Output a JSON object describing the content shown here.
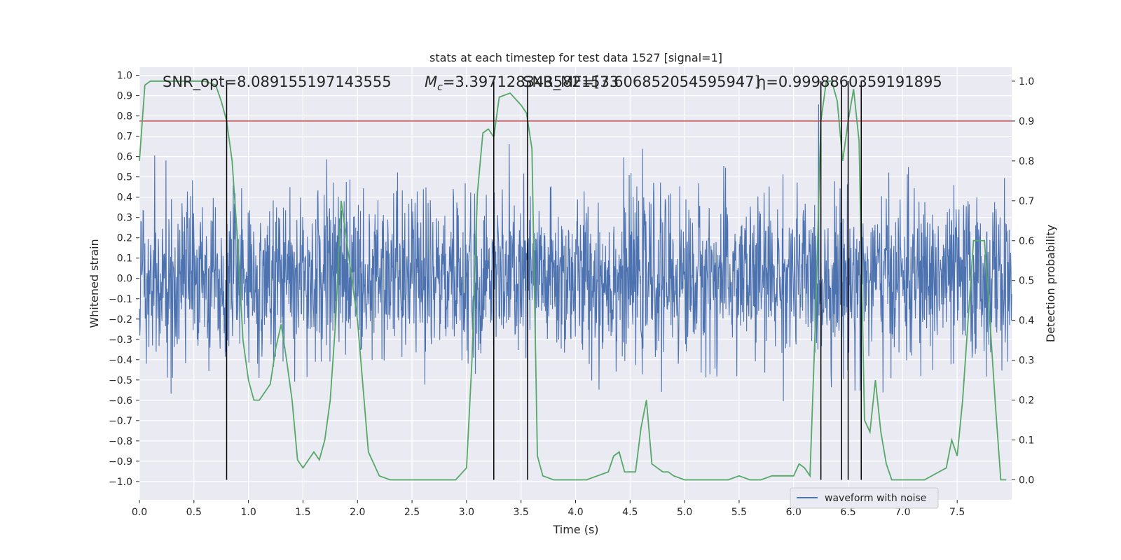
{
  "chart_data": {
    "type": "line",
    "title": "stats at each timestep for test data 1527 [signal=1]",
    "xlabel": "Time (s)",
    "ylabel_left": "Whitened strain",
    "ylabel_right": "Detection probability",
    "xlim": [
      0.0,
      8.0
    ],
    "ylim_left": [
      -1.09,
      1.04
    ],
    "ylim_right": [
      -0.05,
      1.035
    ],
    "xticks": [
      "0.0",
      "0.5",
      "1.0",
      "1.5",
      "2.0",
      "2.5",
      "3.0",
      "3.5",
      "4.0",
      "4.5",
      "5.0",
      "5.5",
      "6.0",
      "6.5",
      "7.0",
      "7.5"
    ],
    "yticks_left": [
      "1.0",
      "0.9",
      "0.8",
      "0.7",
      "0.6",
      "0.5",
      "0.4",
      "0.3",
      "0.2",
      "0.1",
      "0.0",
      "−0.1",
      "−0.2",
      "−0.3",
      "−0.4",
      "−0.5",
      "−0.6",
      "−0.7",
      "−0.8",
      "−0.9",
      "−1.0"
    ],
    "yticks_right": [
      "1.0",
      "0.9",
      "0.8",
      "0.7",
      "0.6",
      "0.5",
      "0.4",
      "0.3",
      "0.2",
      "0.1",
      "0.0"
    ],
    "grid": true,
    "background": "#eaeaf2",
    "legend": {
      "placement": "bottom-right",
      "entries": [
        "waveform with noise"
      ]
    },
    "annotations": {
      "snr_opt": "SNR_opt=8.089155197143555",
      "mc_prefix": "M",
      "mc_sub": "c",
      "mc_value": "=3.3971283435821533",
      "snr_mf": "SNR_MF=[7.606852054595947]",
      "eta": "η=0.9998860359191895"
    },
    "series": [
      {
        "name": "waveform with noise",
        "axis": "left",
        "color": "#4c72b0",
        "description": "dense whitened strain noise, amplitude up to ~0.93",
        "envelope_std": 0.2,
        "n_samples": 2400
      },
      {
        "axis": "right",
        "color": "#55a868",
        "x": [
          0.0,
          0.05,
          0.1,
          0.2,
          0.4,
          0.6,
          0.7,
          0.75,
          0.8,
          0.85,
          0.9,
          0.95,
          1.0,
          1.05,
          1.1,
          1.15,
          1.2,
          1.25,
          1.3,
          1.35,
          1.4,
          1.45,
          1.5,
          1.55,
          1.6,
          1.65,
          1.7,
          1.75,
          1.8,
          1.85,
          1.9,
          2.0,
          2.1,
          2.2,
          2.3,
          2.5,
          2.7,
          2.9,
          3.0,
          3.05,
          3.1,
          3.15,
          3.2,
          3.25,
          3.3,
          3.4,
          3.5,
          3.55,
          3.6,
          3.65,
          3.7,
          3.8,
          3.9,
          4.0,
          4.1,
          4.2,
          4.3,
          4.35,
          4.4,
          4.45,
          4.5,
          4.55,
          4.6,
          4.65,
          4.7,
          4.75,
          4.8,
          4.85,
          4.9,
          5.0,
          5.1,
          5.2,
          5.3,
          5.4,
          5.5,
          5.6,
          5.7,
          5.8,
          5.9,
          6.0,
          6.05,
          6.1,
          6.15,
          6.2,
          6.25,
          6.3,
          6.35,
          6.4,
          6.45,
          6.5,
          6.55,
          6.6,
          6.65,
          6.7,
          6.75,
          6.8,
          6.85,
          6.9,
          6.95,
          7.0,
          7.2,
          7.4,
          7.45,
          7.5,
          7.55,
          7.6,
          7.65,
          7.7,
          7.75,
          7.8,
          7.85,
          7.9,
          7.95
        ],
        "values": [
          0.8,
          0.99,
          1.0,
          1.0,
          1.0,
          1.0,
          0.99,
          0.95,
          0.9,
          0.8,
          0.6,
          0.35,
          0.25,
          0.2,
          0.2,
          0.22,
          0.24,
          0.33,
          0.39,
          0.3,
          0.2,
          0.05,
          0.03,
          0.05,
          0.07,
          0.05,
          0.1,
          0.2,
          0.4,
          0.7,
          0.6,
          0.4,
          0.07,
          0.01,
          0.0,
          0.0,
          0.0,
          0.0,
          0.03,
          0.3,
          0.72,
          0.87,
          0.88,
          0.86,
          0.96,
          0.97,
          0.94,
          0.92,
          0.83,
          0.06,
          0.01,
          0.0,
          0.0,
          0.0,
          0.0,
          0.01,
          0.02,
          0.06,
          0.07,
          0.02,
          0.02,
          0.02,
          0.13,
          0.2,
          0.04,
          0.03,
          0.02,
          0.02,
          0.01,
          0.0,
          0.0,
          0.0,
          0.0,
          0.0,
          0.01,
          0.0,
          0.0,
          0.01,
          0.01,
          0.01,
          0.04,
          0.03,
          0.01,
          0.4,
          0.9,
          1.0,
          1.0,
          0.95,
          0.8,
          0.9,
          0.98,
          0.85,
          0.15,
          0.12,
          0.25,
          0.12,
          0.04,
          0.0,
          0.0,
          0.0,
          0.0,
          0.03,
          0.1,
          0.06,
          0.2,
          0.4,
          0.6,
          0.6,
          0.6,
          0.4,
          0.19,
          0.0,
          0.0
        ]
      }
    ],
    "thresholds": [
      {
        "axis": "right",
        "value": 0.9,
        "color": "#c44e52"
      }
    ],
    "vlines": [
      0.8,
      3.25,
      3.56,
      6.25,
      6.44,
      6.5,
      6.62
    ]
  }
}
